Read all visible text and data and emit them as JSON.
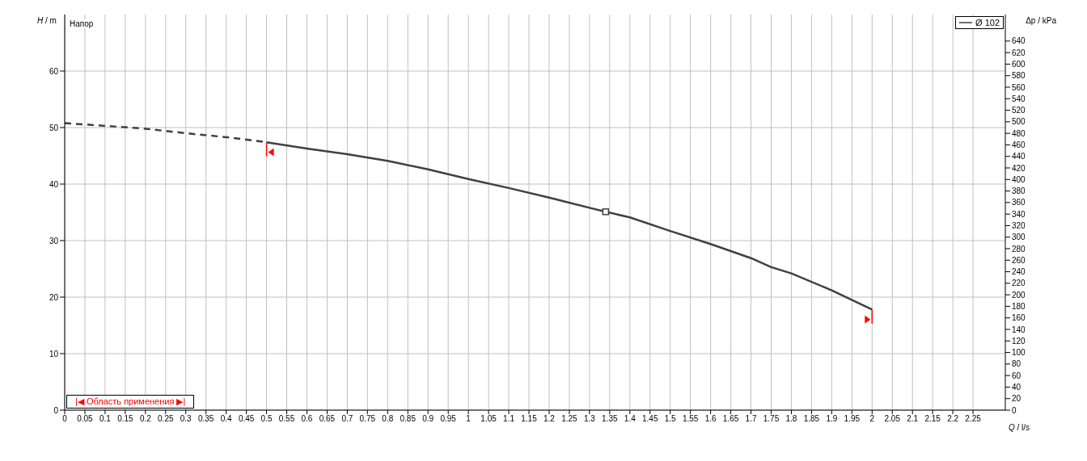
{
  "chart_data": {
    "type": "line",
    "ylabel": "H / m",
    "y2label": "Δp / kPa",
    "xlabel": "Q / l/s",
    "annotations": [
      "Напор",
      "|◀ Область применения ▶|"
    ],
    "series": [
      {
        "line_style": "dashed",
        "color": "#404040",
        "x": [
          0,
          0.1,
          0.2,
          0.3,
          0.4,
          0.5
        ],
        "values": [
          50.8,
          50.3,
          49.8,
          49.0,
          48.3,
          47.4
        ]
      },
      {
        "name": "Ø 102",
        "line_style": "solid",
        "color": "#404040",
        "x": [
          0.5,
          0.6,
          0.7,
          0.8,
          0.9,
          1.0,
          1.1,
          1.2,
          1.3,
          1.34,
          1.4,
          1.5,
          1.6,
          1.7,
          1.75,
          1.8,
          1.9,
          2.0
        ],
        "values": [
          47.4,
          46.3,
          45.3,
          44.1,
          42.6,
          40.9,
          39.3,
          37.6,
          35.8,
          35.1,
          34.1,
          31.7,
          29.4,
          26.9,
          25.3,
          24.2,
          21.2,
          17.8
        ]
      },
      {
        "type": "scatter",
        "marker": "square",
        "color": "#404040",
        "x": [
          1.34
        ],
        "values": [
          35.1
        ]
      }
    ],
    "xlim": [
      0,
      2.33
    ],
    "xticks": [
      0,
      0.05,
      0.1,
      0.15,
      0.2,
      0.25,
      0.3,
      0.35,
      0.4,
      0.45,
      0.5,
      0.55,
      0.6,
      0.65,
      0.7,
      0.75,
      0.8,
      0.85,
      0.9,
      0.95,
      1,
      1.05,
      1.1,
      1.15,
      1.2,
      1.25,
      1.3,
      1.35,
      1.4,
      1.45,
      1.5,
      1.55,
      1.6,
      1.65,
      1.7,
      1.75,
      1.8,
      1.85,
      1.9,
      1.95,
      2,
      2.05,
      2.1,
      2.15,
      2.2,
      2.25
    ],
    "ylim": [
      0,
      70
    ],
    "yticks": [
      0,
      10,
      20,
      30,
      40,
      50,
      60
    ],
    "y2lim": [
      0,
      686
    ],
    "y2ticks": [
      0,
      20,
      40,
      60,
      80,
      100,
      120,
      140,
      160,
      180,
      200,
      220,
      240,
      260,
      280,
      300,
      320,
      340,
      360,
      380,
      400,
      420,
      440,
      460,
      480,
      500,
      520,
      540,
      560,
      580,
      600,
      620,
      640
    ],
    "grid": true,
    "legend": "top right"
  }
}
